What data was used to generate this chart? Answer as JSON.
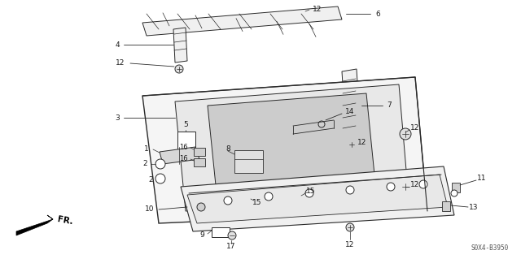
{
  "diagram_code": "S0X4-B3950",
  "bg_color": "#ffffff",
  "lc": "#2a2a2a",
  "lw": 0.7,
  "figsize": [
    6.4,
    3.19
  ],
  "dpi": 100
}
